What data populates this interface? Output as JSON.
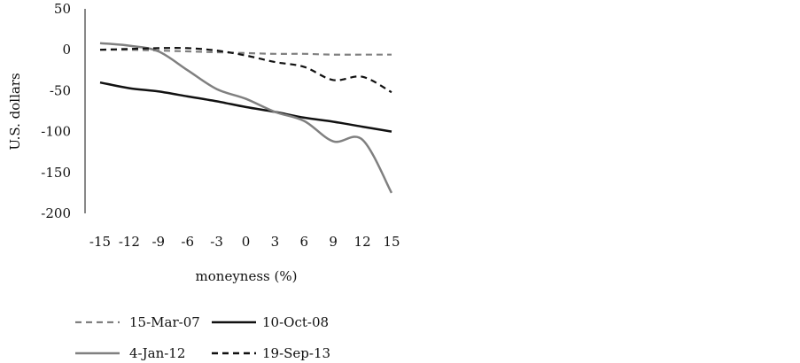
{
  "chart_data": {
    "type": "line",
    "title": "",
    "xlabel": "moneyness (%)",
    "ylabel": "U.S. dollars",
    "x": [
      -15,
      -12,
      -9,
      -6,
      -3,
      0,
      3,
      6,
      9,
      12,
      15
    ],
    "x_tick_labels": [
      "-15",
      "-12",
      "-9",
      "-6",
      "-3",
      "0",
      "3",
      "6",
      "9",
      "12",
      "15"
    ],
    "ylim": [
      -200,
      50
    ],
    "y_ticks": [
      50,
      0,
      -50,
      -100,
      -150,
      -200
    ],
    "y_tick_labels": [
      "50",
      "0",
      "-50",
      "-100",
      "-150",
      "-200"
    ],
    "grid": false,
    "legend_position": "bottom",
    "series": [
      {
        "name": "15-Mar-07",
        "color": "#808080",
        "dash": "dashed",
        "values": [
          0,
          0,
          -1,
          -2,
          -3,
          -4,
          -5,
          -5,
          -6,
          -6,
          -6
        ]
      },
      {
        "name": "10-Oct-08",
        "color": "#111111",
        "dash": "solid",
        "values": [
          -40,
          -47,
          -51,
          -57,
          -63,
          -70,
          -76,
          -83,
          -88,
          -94,
          -100
        ]
      },
      {
        "name": "4-Jan-12",
        "color": "#808080",
        "dash": "solid",
        "values": [
          8,
          5,
          -2,
          -25,
          -48,
          -60,
          -76,
          -87,
          -112,
          -110,
          -175
        ]
      },
      {
        "name": "19-Sep-13",
        "color": "#111111",
        "dash": "dashed",
        "values": [
          0,
          1,
          2,
          2,
          -1,
          -7,
          -15,
          -21,
          -37,
          -33,
          -52
        ]
      }
    ]
  }
}
